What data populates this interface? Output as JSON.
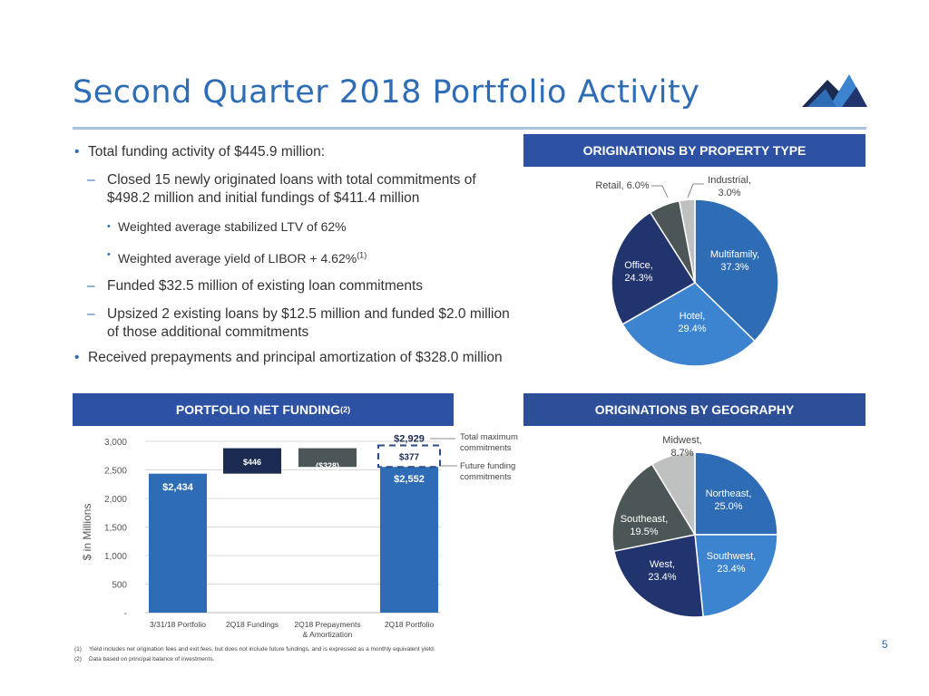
{
  "page": {
    "title": "Second Quarter 2018 Portfolio Activity",
    "page_number": "5",
    "accent_color": "#2e6db5",
    "banner_color": "#2d52a3",
    "logo_icon": "mountain-logo-icon"
  },
  "bullets": {
    "b1": "Total funding activity of $445.9 million:",
    "b1a": "Closed 15 newly originated loans with total commitments of $498.2 million and initial fundings of $411.4 million",
    "b1a_i": "Weighted average stabilized LTV of 62%",
    "b1a_ii": "Weighted average yield of LIBOR + 4.62%",
    "b1a_ii_sup": "(1)",
    "b1b": "Funded $32.5 million of existing loan commitments",
    "b1c": "Upsized 2 existing loans by $12.5 million and funded $2.0 million of those additional commitments",
    "b2": "Received prepayments and principal amortization of $328.0 million"
  },
  "banners": {
    "property": "ORIGINATIONS BY PROPERTY TYPE",
    "funding": "PORTFOLIO NET FUNDING",
    "funding_sup": "(2)",
    "geography": "ORIGINATIONS BY GEOGRAPHY"
  },
  "footnotes": {
    "n1": "(1)",
    "t1": "Yield includes net origination fees and exit fees, but does not include future fundings, and is expressed as a monthly equivalent yield.",
    "n2": "(2)",
    "t2": "Data based on principal balance of investments."
  },
  "chart_data": [
    {
      "type": "pie",
      "title": "ORIGINATIONS BY PROPERTY TYPE",
      "slices": [
        {
          "name": "Multifamily",
          "value": 37.3,
          "label": "Multifamily,",
          "pct": "37.3%",
          "color": "#2e6db5"
        },
        {
          "name": "Hotel",
          "value": 29.4,
          "label": "Hotel,",
          "pct": "29.4%",
          "color": "#3c84cf"
        },
        {
          "name": "Office",
          "value": 24.3,
          "label": "Office,",
          "pct": "24.3%",
          "color": "#21346e"
        },
        {
          "name": "Retail",
          "value": 6.0,
          "label": "Retail, 6.0%",
          "pct": "",
          "color": "#4d5657"
        },
        {
          "name": "Industrial",
          "value": 3.0,
          "label": "Industrial,",
          "pct": "3.0%",
          "color": "#bfc0c0"
        }
      ]
    },
    {
      "type": "bar",
      "title": "PORTFOLIO NET FUNDING",
      "ylabel": "$ in Millions",
      "ylim": [
        0,
        3000
      ],
      "yticks": [
        {
          "value": 0,
          "label": "-"
        },
        {
          "value": 500,
          "label": "500"
        },
        {
          "value": 1000,
          "label": "1,000"
        },
        {
          "value": 1500,
          "label": "1,500"
        },
        {
          "value": 2000,
          "label": "2,000"
        },
        {
          "value": 2500,
          "label": "2,500"
        },
        {
          "value": 3000,
          "label": "3,000"
        }
      ],
      "categories": [
        "3/31/18 Portfolio",
        "2Q18 Fundings",
        "2Q18 Prepayments",
        "2Q18 Portfolio"
      ],
      "category_line2": [
        "",
        "",
        "& Amortization",
        ""
      ],
      "bars": [
        {
          "base": 0,
          "top": 2434,
          "label": "$2,434",
          "color": "#2e6db5"
        },
        {
          "base": 2434,
          "top": 2880,
          "label": "$446",
          "color": "#1c2b52"
        },
        {
          "base": 2552,
          "top": 2880,
          "label": "($328)",
          "color": "#4d5657"
        },
        {
          "base": 0,
          "top": 2552,
          "label": "$2,552",
          "color": "#2e6db5"
        }
      ],
      "future_funding": {
        "value": 377,
        "label": "$377"
      },
      "total_label": "$2,929",
      "annotations": {
        "total_max": "Total maximum",
        "total_max2": "commitments",
        "future": "Future funding",
        "future2": "commitments"
      }
    },
    {
      "type": "pie",
      "title": "ORIGINATIONS BY GEOGRAPHY",
      "slices": [
        {
          "name": "Northeast",
          "value": 25.0,
          "label": "Northeast,",
          "pct": "25.0%",
          "color": "#2e6db5"
        },
        {
          "name": "Southwest",
          "value": 23.4,
          "label": "Southwest,",
          "pct": "23.4%",
          "color": "#3c84cf"
        },
        {
          "name": "West",
          "value": 23.4,
          "label": "West,",
          "pct": "23.4%",
          "color": "#21346e"
        },
        {
          "name": "Southeast",
          "value": 19.5,
          "label": "Southeast,",
          "pct": "19.5%",
          "color": "#4d5657"
        },
        {
          "name": "Midwest",
          "value": 8.7,
          "label": "Midwest,",
          "pct": "8.7%",
          "color": "#bfc0c0"
        }
      ]
    }
  ]
}
